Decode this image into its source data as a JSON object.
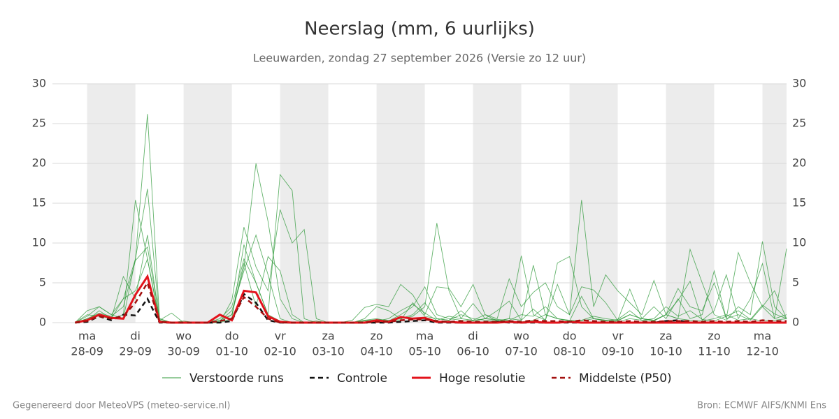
{
  "chart_data": {
    "type": "ensemble-line",
    "title": "Neerslag (mm, 6 uurlijks)",
    "subtitle": "Leeuwarden, zondag 27 september 2026 (Versie zo 12 uur)",
    "footer_left": "Gegenereerd door MeteoVPS (meteo-service.nl)",
    "footer_right": "Bron: ECMWF AIFS/KNMI Ens",
    "xlim": [
      -0.72,
      14.5
    ],
    "xticks": [
      {
        "value": 0,
        "label": "ma",
        "date": "28-09"
      },
      {
        "value": 1,
        "label": "di",
        "date": "29-09"
      },
      {
        "value": 2,
        "label": "wo",
        "date": "30-09"
      },
      {
        "value": 3,
        "label": "do",
        "date": "01-10"
      },
      {
        "value": 4,
        "label": "vr",
        "date": "02-10"
      },
      {
        "value": 5,
        "label": "za",
        "date": "03-10"
      },
      {
        "value": 6,
        "label": "zo",
        "date": "04-10"
      },
      {
        "value": 7,
        "label": "ma",
        "date": "05-10"
      },
      {
        "value": 8,
        "label": "di",
        "date": "06-10"
      },
      {
        "value": 9,
        "label": "wo",
        "date": "07-10"
      },
      {
        "value": 10,
        "label": "do",
        "date": "08-10"
      },
      {
        "value": 11,
        "label": "vr",
        "date": "09-10"
      },
      {
        "value": 12,
        "label": "za",
        "date": "10-10"
      },
      {
        "value": 13,
        "label": "zo",
        "date": "11-10"
      },
      {
        "value": 14,
        "label": "ma",
        "date": "12-10"
      }
    ],
    "ylim": [
      0,
      30
    ],
    "yticks": [
      0,
      5,
      10,
      15,
      20,
      25,
      30
    ],
    "y2lim": [
      0,
      30
    ],
    "y2ticks": [
      0,
      5,
      10,
      15,
      20,
      25,
      30
    ],
    "grid": true,
    "x": [
      -0.25,
      0,
      0.25,
      0.5,
      0.75,
      1,
      1.25,
      1.5,
      1.75,
      2,
      2.25,
      2.5,
      2.75,
      3,
      3.25,
      3.5,
      3.75,
      4,
      4.25,
      4.5,
      4.75,
      5,
      5.25,
      5.5,
      5.75,
      6,
      6.25,
      6.5,
      6.75,
      7,
      7.25,
      7.5,
      7.75,
      8,
      8.25,
      8.5,
      8.75,
      9,
      9.25,
      9.5,
      9.75,
      10,
      10.25,
      10.5,
      10.75,
      11,
      11.25,
      11.5,
      11.75,
      12,
      12.25,
      12.5,
      12.75,
      13,
      13.25,
      13.5,
      13.75,
      14,
      14.25,
      14.5
    ],
    "ensemble": {
      "name": "Verstoorde runs",
      "color": "#2f9a3a",
      "members": [
        [
          0,
          1.5,
          2,
          1,
          0.5,
          8,
          26.2,
          0.5,
          0,
          0,
          0,
          0,
          0.5,
          2,
          8,
          5,
          1,
          0.2,
          0,
          0,
          0,
          0,
          0,
          0,
          0.3,
          0.5,
          0.2,
          1,
          2,
          4.5,
          1,
          0.5,
          0.3,
          0.2,
          0.5,
          0.3,
          0.2,
          0.1,
          0.3,
          1,
          0.5,
          0.3,
          0.2,
          0.5,
          0.3,
          0.1,
          0.5,
          0.3,
          0.2,
          1,
          0.5,
          0.3,
          0.2,
          0.5,
          1,
          0.3,
          0.5,
          0.2,
          0.3,
          0.5
        ],
        [
          0,
          0.5,
          1,
          0.5,
          1,
          15.4,
          8,
          0,
          0,
          0,
          0,
          0,
          0.3,
          1,
          7,
          20,
          12.7,
          3,
          0.5,
          0,
          0,
          0,
          0,
          0,
          0.5,
          2,
          1.5,
          0.5,
          0.8,
          2,
          12.5,
          4,
          0.5,
          0.3,
          1,
          0.2,
          0.5,
          8.4,
          1,
          0.3,
          7.5,
          8.3,
          2,
          0.5,
          0.3,
          0.2,
          1,
          0.5,
          0.3,
          1,
          0.5,
          9.2,
          5,
          1,
          0.3,
          2,
          1,
          10.2,
          2,
          0.5
        ],
        [
          0,
          0.3,
          1.5,
          0.5,
          3,
          8,
          16.8,
          0.3,
          0,
          0,
          0,
          0,
          0,
          0.5,
          9.8,
          5,
          1,
          18.6,
          16.6,
          0.5,
          0,
          0,
          0,
          0.3,
          1.9,
          2.3,
          2,
          4.8,
          3.5,
          1,
          4.5,
          4.3,
          2,
          4.8,
          1,
          0.5,
          5.5,
          2,
          3.8,
          5,
          2,
          1,
          15.4,
          2,
          6,
          4,
          2.5,
          1,
          5.3,
          1,
          4.3,
          2,
          1.5,
          5,
          0.5,
          8.8,
          5,
          2,
          0.5,
          1
        ],
        [
          0,
          1,
          0.8,
          0.5,
          5.8,
          3,
          11,
          0.2,
          0,
          0,
          0,
          0,
          0,
          2.8,
          12,
          7,
          4,
          14.2,
          10,
          11.7,
          0.5,
          0,
          0,
          0,
          0.3,
          0.2,
          0.5,
          1.5,
          2.3,
          1.2,
          0.3,
          0.8,
          0.5,
          2.4,
          0.5,
          1.5,
          2.7,
          0.3,
          1.7,
          0.3,
          4.8,
          1,
          4.5,
          4.1,
          2.5,
          0.3,
          4.2,
          0.5,
          0.3,
          1,
          2.8,
          5.2,
          0.3,
          1.5,
          6,
          0.5,
          3,
          7.4,
          0.5,
          9.3
        ],
        [
          0,
          0.5,
          1.2,
          0.8,
          2,
          7.8,
          9.5,
          0.5,
          0,
          0.2,
          0,
          0,
          0.2,
          1.5,
          6.5,
          11,
          6,
          0.5,
          0,
          0,
          0,
          0,
          0,
          0,
          0.1,
          0.3,
          0.2,
          0.5,
          1,
          2.5,
          0.5,
          0.3,
          1,
          0.5,
          0.3,
          0.2,
          0.5,
          0.3,
          7.2,
          1,
          0.5,
          0.2,
          0.3,
          0.8,
          0.5,
          0.3,
          1,
          0.5,
          2,
          0.5,
          3,
          0.5,
          1,
          6.5,
          0.5,
          1,
          0.3,
          2,
          4,
          0.5
        ],
        [
          0,
          0.8,
          2,
          1,
          3,
          4,
          8,
          0.3,
          1.2,
          0,
          0,
          0,
          0.1,
          1,
          7.5,
          2,
          8.3,
          6.5,
          1,
          0,
          0.2,
          0,
          0,
          0,
          0.2,
          0.4,
          0.3,
          0.3,
          2.5,
          0.8,
          0.5,
          0.3,
          1.5,
          0.2,
          0.5,
          0.4,
          0.3,
          1,
          0.8,
          2,
          0.5,
          0.2,
          3.3,
          0.5,
          0.2,
          0.4,
          1.5,
          0.3,
          0.5,
          2,
          0.8,
          1.5,
          0.4,
          0.2,
          0.8,
          1.5,
          0.4,
          2.2,
          1.1,
          0.5
        ]
      ]
    },
    "series": [
      {
        "name": "Controle",
        "color": "#111111",
        "dash": true,
        "values": [
          0,
          0.1,
          0.8,
          0.3,
          1,
          0.9,
          3,
          0,
          0,
          0,
          0,
          0,
          0,
          0.2,
          3.6,
          2.5,
          0.3,
          0,
          0,
          0,
          0,
          0,
          0,
          0,
          0,
          0,
          0,
          0.1,
          0.2,
          0.3,
          0,
          0,
          0,
          0,
          0,
          0.1,
          0,
          0,
          0,
          0,
          0,
          0,
          0,
          0,
          0,
          0,
          0,
          0,
          0,
          0.2,
          0.3,
          0,
          0,
          0,
          0,
          0,
          0,
          0,
          0,
          0
        ]
      },
      {
        "name": "Hoge resolutie",
        "color": "#e3131b",
        "dash": false,
        "values": [
          0,
          0.3,
          1,
          0.6,
          0.5,
          3.5,
          5.8,
          0.1,
          0,
          0,
          0,
          0,
          1,
          0.3,
          4,
          3.8,
          0.8,
          0.1,
          0,
          0,
          0,
          0,
          0,
          0,
          0,
          0.3,
          0.1,
          0.7,
          0.5,
          0.6,
          0.1,
          0.1,
          0,
          0,
          0,
          0,
          0.1,
          0,
          0.1,
          0,
          0,
          0.1,
          0,
          0,
          0,
          0,
          0,
          0,
          0,
          0,
          0,
          0,
          0,
          0,
          0,
          0,
          0,
          0,
          0,
          0
        ]
      },
      {
        "name": "Middelste (P50)",
        "color": "#a3100f",
        "dash": true,
        "values": [
          0,
          0.2,
          0.8,
          0.5,
          0.8,
          2.5,
          5,
          0.1,
          0,
          0,
          0,
          0,
          0.2,
          0.5,
          3.2,
          2,
          0.5,
          0,
          0,
          0,
          0,
          0,
          0,
          0,
          0,
          0.1,
          0.1,
          0.3,
          0.4,
          0.4,
          0.2,
          0.1,
          0.2,
          0.1,
          0.1,
          0.1,
          0.2,
          0.1,
          0.3,
          0.2,
          0.2,
          0.1,
          0.3,
          0.2,
          0.1,
          0.1,
          0.2,
          0.1,
          0.1,
          0.2,
          0.2,
          0.2,
          0.1,
          0.2,
          0.1,
          0.2,
          0.1,
          0.3,
          0.2,
          0.2
        ]
      }
    ]
  }
}
